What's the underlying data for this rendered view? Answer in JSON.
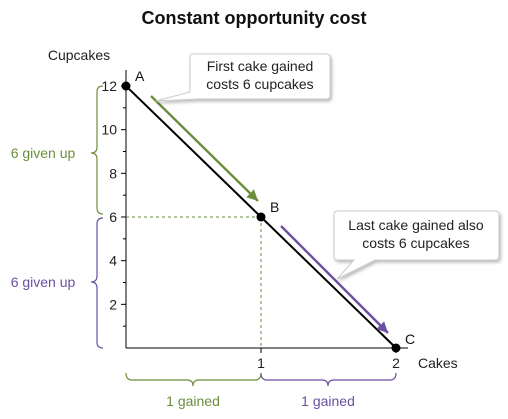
{
  "chart_data": {
    "type": "line",
    "title": "Constant opportunity cost",
    "xlabel": "Cakes",
    "ylabel": "Cupcakes",
    "xlim": [
      0,
      2
    ],
    "ylim": [
      0,
      12
    ],
    "x_ticks": [
      "1",
      "2"
    ],
    "y_ticks": [
      "2",
      "4",
      "6",
      "8",
      "10",
      "12"
    ],
    "grid": false,
    "points": [
      {
        "name": "A",
        "x": 0,
        "y": 12
      },
      {
        "name": "B",
        "x": 1,
        "y": 6
      },
      {
        "name": "C",
        "x": 2,
        "y": 0
      }
    ],
    "annotations": {
      "first": [
        "First cake gained",
        "costs 6 cupcakes"
      ],
      "last": [
        "Last cake gained also",
        "costs 6 cupcakes"
      ]
    },
    "brackets": {
      "y_upper": "6 given up",
      "y_lower": "6 given up",
      "x_first": "1 gained",
      "x_second": "1 gained"
    },
    "colors": {
      "line": "#000000",
      "green": "#6b8e3a",
      "purple": "#6b4fa0",
      "bracket_text_green": "#6b8e3a",
      "bracket_text_purple": "#6b4fa0",
      "guide": "#6b8e3a"
    }
  }
}
